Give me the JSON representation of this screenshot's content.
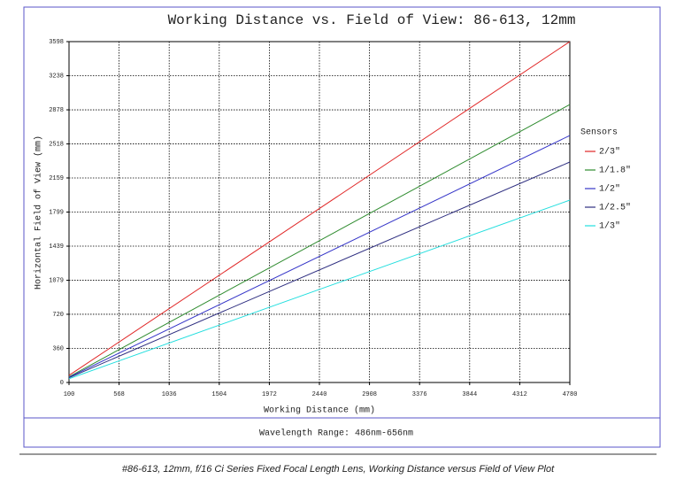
{
  "chart_data": {
    "type": "line",
    "title": "Working Distance vs. Field of View: 86-613, 12mm",
    "x_label": "Working Distance (mm)",
    "y_label": "Horizontal Field of View (mm)",
    "legend_title": "Sensors",
    "x": [
      100,
      4780
    ],
    "series": [
      {
        "name": "2/3\"",
        "color": "#e02424",
        "values": [
          75,
          3598
        ]
      },
      {
        "name": "1/1.8\"",
        "color": "#2e8b2e",
        "values": [
          60,
          2934
        ]
      },
      {
        "name": "1/2\"",
        "color": "#3535c8",
        "values": [
          55,
          2607
        ]
      },
      {
        "name": "1/2.5\"",
        "color": "#2e2e80",
        "values": [
          50,
          2327
        ]
      },
      {
        "name": "1/3\"",
        "color": "#22dede",
        "values": [
          40,
          1925
        ]
      }
    ],
    "xlim": [
      100,
      4780
    ],
    "ylim": [
      0,
      3598
    ],
    "xticks": [
      100,
      568,
      1036,
      1504,
      1972,
      2440,
      2908,
      3376,
      3844,
      4312,
      4780
    ],
    "yticks": [
      0,
      360,
      720,
      1079,
      1439,
      1799,
      2159,
      2518,
      2878,
      3238,
      3598
    ],
    "grid": true,
    "wavelength_note": "Wavelength Range: 486nm-656nm"
  },
  "caption": "#86-613, 12mm, f/16 Ci Series Fixed Focal Length Lens, Working Distance versus Field of View Plot"
}
